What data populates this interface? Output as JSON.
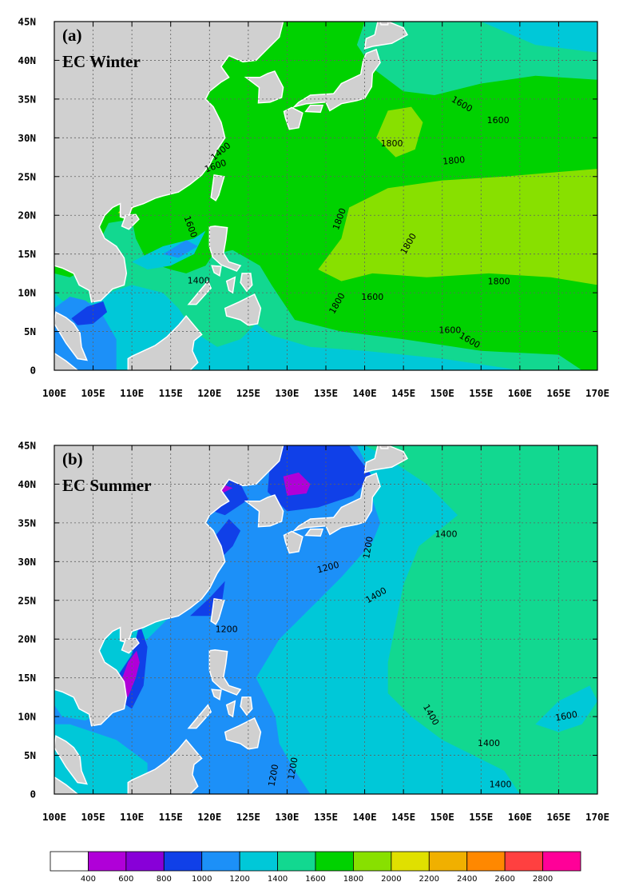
{
  "x_ticks": [
    "100E",
    "105E",
    "110E",
    "115E",
    "120E",
    "125E",
    "130E",
    "135E",
    "140E",
    "145E",
    "150E",
    "155E",
    "160E",
    "165E",
    "170E"
  ],
  "y_ticks": [
    "0",
    "5N",
    "10N",
    "15N",
    "20N",
    "25N",
    "30N",
    "35N",
    "40N",
    "45N"
  ],
  "panels": [
    {
      "letter": "(a)",
      "title": "EC Winter",
      "contour_labels": [
        {
          "text": "1400",
          "lon": 121.5,
          "lat": 28.2,
          "rot": -40
        },
        {
          "text": "1600",
          "lon": 120.8,
          "lat": 26.3,
          "rot": -20
        },
        {
          "text": "1600",
          "lon": 117.5,
          "lat": 18.5,
          "rot": 70
        },
        {
          "text": "1400",
          "lon": 118.6,
          "lat": 11.5,
          "rot": 0
        },
        {
          "text": "1600",
          "lon": 152.5,
          "lat": 34.3,
          "rot": 30
        },
        {
          "text": "1600",
          "lon": 157.2,
          "lat": 32.2,
          "rot": 0
        },
        {
          "text": "1800",
          "lon": 143.5,
          "lat": 29.2,
          "rot": 0
        },
        {
          "text": "1800",
          "lon": 151.5,
          "lat": 27.0,
          "rot": -5
        },
        {
          "text": "1800",
          "lon": 136.8,
          "lat": 19.5,
          "rot": -70
        },
        {
          "text": "1800",
          "lon": 145.7,
          "lat": 16.3,
          "rot": -60
        },
        {
          "text": "1800",
          "lon": 157.3,
          "lat": 11.4,
          "rot": 0
        },
        {
          "text": "1800",
          "lon": 136.5,
          "lat": 8.6,
          "rot": -60
        },
        {
          "text": "1600",
          "lon": 141.0,
          "lat": 9.4,
          "rot": 0
        },
        {
          "text": "1600",
          "lon": 151.0,
          "lat": 5.1,
          "rot": 0
        },
        {
          "text": "1600",
          "lon": 153.5,
          "lat": 3.8,
          "rot": 30
        }
      ]
    },
    {
      "letter": "(b)",
      "title": "EC Summer",
      "contour_labels": [
        {
          "text": "1200",
          "lon": 140.5,
          "lat": 31.8,
          "rot": -80
        },
        {
          "text": "1200",
          "lon": 135.3,
          "lat": 29.2,
          "rot": -15
        },
        {
          "text": "1200",
          "lon": 122.2,
          "lat": 21.2,
          "rot": 0
        },
        {
          "text": "1400",
          "lon": 150.5,
          "lat": 33.5,
          "rot": 0
        },
        {
          "text": "1400",
          "lon": 141.5,
          "lat": 25.6,
          "rot": -30
        },
        {
          "text": "1400",
          "lon": 148.5,
          "lat": 10.2,
          "rot": 60
        },
        {
          "text": "1400",
          "lon": 156.0,
          "lat": 6.5,
          "rot": 0
        },
        {
          "text": "1400",
          "lon": 157.5,
          "lat": 1.2,
          "rot": 0
        },
        {
          "text": "1600",
          "lon": 166.0,
          "lat": 10.0,
          "rot": -10
        },
        {
          "text": "1200",
          "lon": 130.8,
          "lat": 3.3,
          "rot": -80
        },
        {
          "text": "1200",
          "lon": 128.3,
          "lat": 2.4,
          "rot": -80
        }
      ]
    }
  ],
  "colorbar": {
    "labels": [
      "400",
      "600",
      "800",
      "1000",
      "1200",
      "1400",
      "1600",
      "1800",
      "2000",
      "2200",
      "2400",
      "2600",
      "2800"
    ],
    "colors": [
      "#ffffff",
      "#b000d8",
      "#8800d8",
      "#1040e8",
      "#1c90f8",
      "#00c8d8",
      "#12d890",
      "#00d200",
      "#88e000",
      "#e0e000",
      "#f0b000",
      "#ff8800",
      "#ff4040",
      "#ff0098"
    ]
  },
  "colors": {
    "land": "#d0d0d0",
    "level_600": "#b000d8",
    "level_800": "#8800d8",
    "level_1000": "#1040e8",
    "level_1200": "#1c90f8",
    "level_1400": "#00c8d8",
    "level_1600": "#12d890",
    "level_1800": "#00d200",
    "level_2000": "#88e000",
    "level_2200": "#e0e000"
  }
}
